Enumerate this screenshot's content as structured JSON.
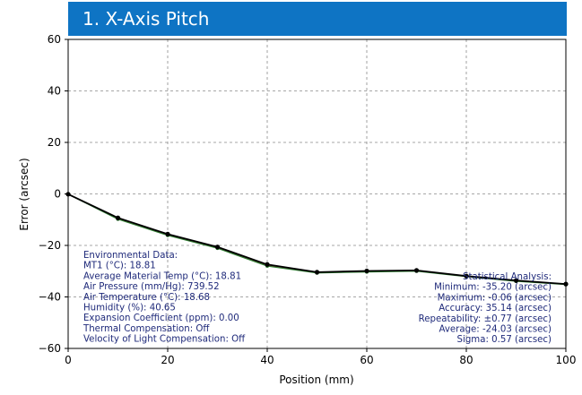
{
  "title": "1. X-Axis Pitch",
  "chart_data": {
    "type": "line",
    "xlabel": "Position (mm)",
    "ylabel": "Error (arcsec)",
    "xlim": [
      0,
      100
    ],
    "ylim": [
      -60,
      60
    ],
    "xticks": [
      0,
      20,
      40,
      60,
      80,
      100
    ],
    "yticks": [
      60,
      40,
      20,
      0,
      -20,
      -40,
      -60
    ],
    "grid": true,
    "series": [
      {
        "x": [
          0,
          10,
          20,
          30,
          40,
          50,
          60,
          70,
          80,
          90,
          100
        ],
        "values": [
          -0.1,
          -9.3,
          -15.6,
          -20.6,
          -27.4,
          -30.4,
          -29.9,
          -29.7,
          -31.9,
          -33.6,
          -35.0
        ],
        "color": "#000000"
      },
      {
        "x": [
          0,
          10,
          20,
          30,
          40,
          50,
          60,
          70,
          80,
          90,
          100
        ],
        "values": [
          -0.1,
          -9.8,
          -16.1,
          -21.1,
          -28.0,
          -30.7,
          -30.3,
          -30.0,
          -32.1,
          -33.9,
          -35.2
        ],
        "color": "#2e7d32"
      },
      {
        "x": [
          0,
          10,
          20,
          30,
          40,
          50,
          60,
          70,
          80,
          90,
          100
        ],
        "values": [
          -0.06,
          -9.5,
          -15.9,
          -20.9,
          -27.7,
          -30.5,
          -30.1,
          -29.8,
          -32.0,
          -33.7,
          -35.1
        ],
        "color": "#c62828"
      }
    ]
  },
  "environmental": [
    "Environmental Data:",
    "MT1 (°C): 18.81",
    "Average Material Temp (°C): 18.81",
    "Air Pressure (mm/Hg): 739.52",
    "Air Temperature (°C): 18.68",
    "Humidity (%): 40.65",
    "Expansion Coefficient (ppm): 0.00",
    "Thermal Compensation: Off",
    "Velocity of Light Compensation: Off"
  ],
  "statistics": [
    "Statistical Analysis:",
    "Minimum: -35.20 (arcsec)",
    "Maximum: -0.06 (arcsec)",
    "Accuracy: 35.14 (arcsec)",
    "Repeatability: ±0.77 (arcsec)",
    "Average: -24.03 (arcsec)",
    "Sigma: 0.57 (arcsec)"
  ]
}
